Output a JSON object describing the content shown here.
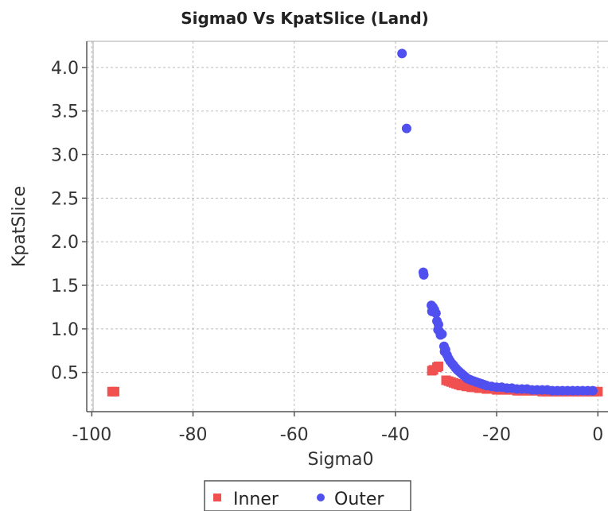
{
  "chart_data": {
    "type": "scatter",
    "title": "Sigma0 Vs KpatSlice (Land)",
    "xlabel": "Sigma0",
    "ylabel": "KpatSlice",
    "xlim": [
      -101,
      2
    ],
    "ylim": [
      0.05,
      4.3
    ],
    "x_ticks": [
      -100,
      -80,
      -60,
      -40,
      -20,
      0
    ],
    "x_tick_labels": [
      "-100",
      "-80",
      "-60",
      "-40",
      "-20",
      "0"
    ],
    "y_ticks": [
      0.5,
      1.0,
      1.5,
      2.0,
      2.5,
      3.0,
      3.5,
      4.0
    ],
    "y_tick_labels": [
      "0.5",
      "1.0",
      "1.5",
      "2.0",
      "2.5",
      "3.0",
      "3.5",
      "4.0"
    ],
    "grid": true,
    "legend_position": "bottom-center",
    "series": [
      {
        "name": "Inner",
        "marker": "square",
        "color": "#f05050",
        "points": [
          [
            -96,
            0.28
          ],
          [
            -95.5,
            0.28
          ],
          [
            -32.8,
            0.52
          ],
          [
            -32.5,
            0.53
          ],
          [
            -31.8,
            0.56
          ],
          [
            -31.5,
            0.57
          ],
          [
            -30.0,
            0.41
          ],
          [
            -29.5,
            0.4
          ],
          [
            -29.0,
            0.39
          ],
          [
            -28.5,
            0.38
          ],
          [
            -28.0,
            0.37
          ],
          [
            -27.5,
            0.36
          ],
          [
            -27.0,
            0.35
          ],
          [
            -26.5,
            0.35
          ],
          [
            -26.0,
            0.34
          ],
          [
            -25.5,
            0.34
          ],
          [
            -25.0,
            0.33
          ],
          [
            -24.5,
            0.33
          ],
          [
            -24.0,
            0.33
          ],
          [
            -23.5,
            0.32
          ],
          [
            -23.0,
            0.32
          ],
          [
            -22.0,
            0.31
          ],
          [
            -21.0,
            0.31
          ],
          [
            -20.0,
            0.3
          ],
          [
            -19.0,
            0.3
          ],
          [
            -18.0,
            0.3
          ],
          [
            -17.0,
            0.3
          ],
          [
            -16.0,
            0.29
          ],
          [
            -15.0,
            0.29
          ],
          [
            -14.0,
            0.29
          ],
          [
            -13.0,
            0.29
          ],
          [
            -12.0,
            0.29
          ],
          [
            -11.0,
            0.28
          ],
          [
            -10.0,
            0.28
          ],
          [
            -9.0,
            0.28
          ],
          [
            -8.0,
            0.28
          ],
          [
            -7.0,
            0.28
          ],
          [
            -6.0,
            0.28
          ],
          [
            -5.0,
            0.28
          ],
          [
            -4.0,
            0.28
          ],
          [
            -3.0,
            0.28
          ],
          [
            -2.0,
            0.28
          ],
          [
            -1.0,
            0.28
          ],
          [
            0.0,
            0.28
          ]
        ]
      },
      {
        "name": "Outer",
        "marker": "circle",
        "color": "#5050f0",
        "points": [
          [
            -38.7,
            4.16
          ],
          [
            -37.8,
            3.3
          ],
          [
            -34.5,
            1.65
          ],
          [
            -34.4,
            1.62
          ],
          [
            -32.9,
            1.27
          ],
          [
            -32.6,
            1.25
          ],
          [
            -32.3,
            1.22
          ],
          [
            -32.8,
            1.2
          ],
          [
            -32.0,
            1.18
          ],
          [
            -31.8,
            1.09
          ],
          [
            -31.5,
            1.05
          ],
          [
            -31.6,
            0.99
          ],
          [
            -31.3,
            0.97
          ],
          [
            -31.1,
            0.93
          ],
          [
            -30.8,
            0.94
          ],
          [
            -30.4,
            0.8
          ],
          [
            -30.1,
            0.76
          ],
          [
            -30.3,
            0.74
          ],
          [
            -29.8,
            0.7
          ],
          [
            -29.5,
            0.66
          ],
          [
            -29.2,
            0.63
          ],
          [
            -28.8,
            0.6
          ],
          [
            -28.5,
            0.58
          ],
          [
            -28.1,
            0.55
          ],
          [
            -27.8,
            0.53
          ],
          [
            -27.4,
            0.51
          ],
          [
            -27.0,
            0.49
          ],
          [
            -26.6,
            0.47
          ],
          [
            -26.2,
            0.45
          ],
          [
            -25.8,
            0.43
          ],
          [
            -25.4,
            0.42
          ],
          [
            -25.0,
            0.41
          ],
          [
            -24.5,
            0.4
          ],
          [
            -24.0,
            0.39
          ],
          [
            -23.5,
            0.38
          ],
          [
            -23.0,
            0.37
          ],
          [
            -22.5,
            0.36
          ],
          [
            -22.0,
            0.35
          ],
          [
            -21.0,
            0.34
          ],
          [
            -20.0,
            0.33
          ],
          [
            -19.0,
            0.33
          ],
          [
            -18.0,
            0.32
          ],
          [
            -17.0,
            0.32
          ],
          [
            -16.0,
            0.31
          ],
          [
            -15.0,
            0.31
          ],
          [
            -14.0,
            0.31
          ],
          [
            -13.0,
            0.3
          ],
          [
            -12.0,
            0.3
          ],
          [
            -11.0,
            0.3
          ],
          [
            -10.0,
            0.3
          ],
          [
            -9.0,
            0.29
          ],
          [
            -8.0,
            0.29
          ],
          [
            -7.0,
            0.29
          ],
          [
            -6.0,
            0.29
          ],
          [
            -5.0,
            0.29
          ],
          [
            -4.0,
            0.29
          ],
          [
            -3.0,
            0.29
          ],
          [
            -2.0,
            0.29
          ],
          [
            -1.0,
            0.29
          ]
        ]
      }
    ]
  }
}
